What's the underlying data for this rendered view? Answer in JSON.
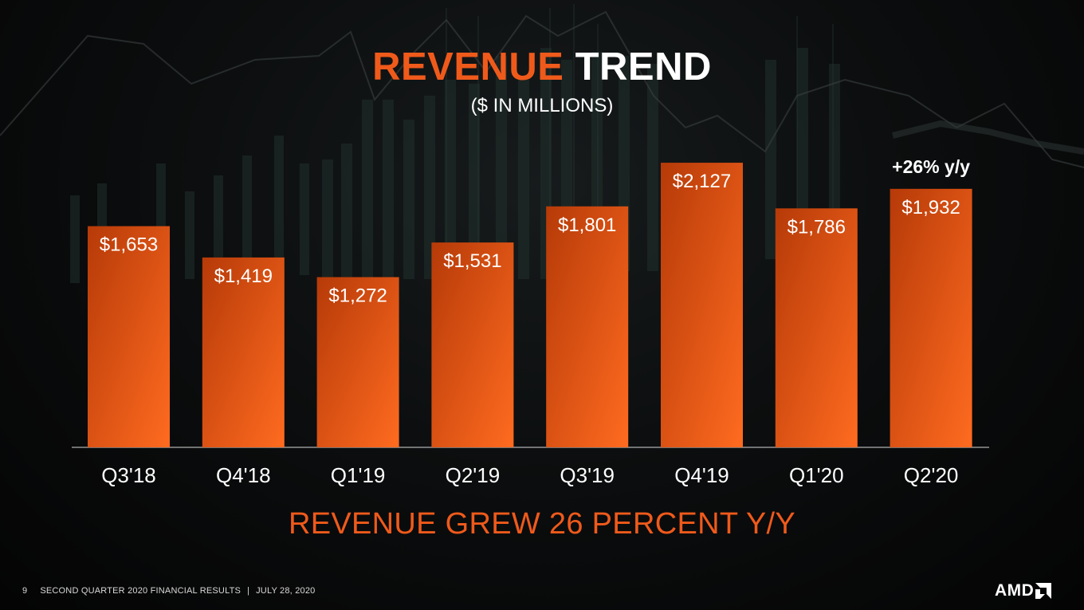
{
  "slide": {
    "title_accent": "REVENUE",
    "title_main": "TREND",
    "subtitle": "($ IN MILLIONS)",
    "tagline": "REVENUE GREW 26 PERCENT Y/Y"
  },
  "footer": {
    "page_number": "9",
    "report": "SECOND QUARTER 2020 FINANCIAL RESULTS",
    "separator": "|",
    "date": "JULY 28, 2020"
  },
  "brand": {
    "logo_text": "AMD",
    "logo_icon": "amd-arrow-icon"
  },
  "colors": {
    "accent": "#ef5a1b",
    "bar_top": "#bf3e0a",
    "bar_bottom": "#ff6a1f",
    "text": "#ffffff"
  },
  "chart_data": {
    "type": "bar",
    "categories": [
      "Q3'18",
      "Q4'18",
      "Q1'19",
      "Q2'19",
      "Q3'19",
      "Q4'19",
      "Q1'20",
      "Q2'20"
    ],
    "values": [
      1653,
      1419,
      1272,
      1531,
      1801,
      2127,
      1786,
      1932
    ],
    "value_labels": [
      "$1,653",
      "$1,419",
      "$1,272",
      "$1,531",
      "$1,801",
      "$2,127",
      "$1,786",
      "$1,932"
    ],
    "annotations": [
      {
        "category": "Q2'20",
        "text": "+26% y/y"
      }
    ],
    "title": "REVENUE TREND",
    "subtitle": "($ IN MILLIONS)",
    "xlabel": "",
    "ylabel": "",
    "grid": false,
    "legend": "none"
  }
}
